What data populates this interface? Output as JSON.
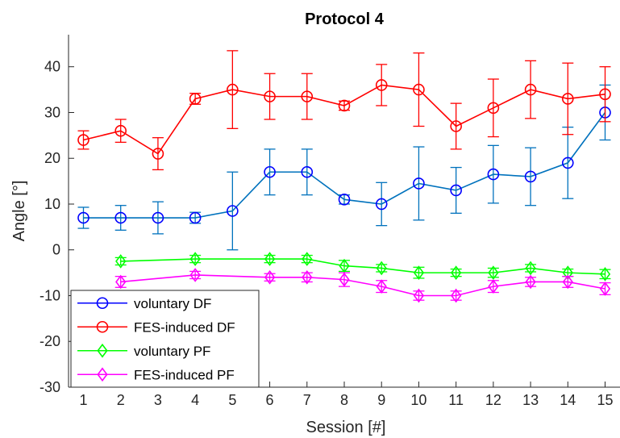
{
  "chart_data": {
    "type": "line",
    "title": "Protocol 4",
    "xlabel": "Session [#]",
    "ylabel": "Angle [°]",
    "xlim": [
      0.6,
      15.4
    ],
    "ylim": [
      -30,
      47
    ],
    "xticks": [
      1,
      2,
      3,
      4,
      5,
      6,
      7,
      8,
      9,
      10,
      11,
      12,
      13,
      14,
      15
    ],
    "yticks": [
      -30,
      -20,
      -10,
      0,
      10,
      20,
      30,
      40
    ],
    "grid": false,
    "legend_position": "bottom-left",
    "series": [
      {
        "name": "voluntary DF",
        "legend_color": "#0000ff",
        "line_color": "#0072bd",
        "marker": "circle",
        "x": [
          1,
          2,
          3,
          4,
          5,
          6,
          7,
          8,
          9,
          10,
          11,
          12,
          13,
          14,
          15
        ],
        "y": [
          7,
          7,
          7,
          7,
          8.5,
          17,
          17,
          11,
          10,
          14.5,
          13,
          16.5,
          16,
          19,
          30
        ],
        "err": [
          2.3,
          2.7,
          3.5,
          1.2,
          8.5,
          5,
          5,
          1,
          4.7,
          8,
          5,
          6.3,
          6.3,
          7.8,
          6
        ]
      },
      {
        "name": "FES-induced DF",
        "legend_color": "#ff0000",
        "line_color": "#ff0000",
        "marker": "circle",
        "x": [
          1,
          2,
          3,
          4,
          5,
          6,
          7,
          8,
          9,
          10,
          11,
          12,
          13,
          14,
          15
        ],
        "y": [
          24,
          26,
          21,
          33,
          35,
          33.5,
          33.5,
          31.5,
          36,
          35,
          27,
          31,
          35,
          33,
          34
        ],
        "err": [
          2,
          2.5,
          3.5,
          1.2,
          8.5,
          5,
          5,
          1,
          4.5,
          8,
          5,
          6.3,
          6.3,
          7.8,
          6
        ]
      },
      {
        "name": "voluntary PF",
        "legend_color": "#00ff00",
        "line_color": "#00ff00",
        "marker": "diamond",
        "x": [
          2,
          4,
          6,
          7,
          8,
          9,
          10,
          11,
          12,
          13,
          14,
          15
        ],
        "y": [
          -2.5,
          -2,
          -2,
          -2,
          -3.5,
          -4,
          -5,
          -5,
          -5,
          -4,
          -5,
          -5.3
        ],
        "err": [
          0.8,
          0.8,
          0.8,
          0.8,
          1.2,
          0.8,
          1.2,
          0.8,
          1,
          0.8,
          0.8,
          1
        ]
      },
      {
        "name": "FES-induced PF",
        "legend_color": "#ff00ff",
        "line_color": "#ff00ff",
        "marker": "diamond",
        "x": [
          2,
          4,
          6,
          7,
          8,
          9,
          10,
          11,
          12,
          13,
          14,
          15
        ],
        "y": [
          -7,
          -5.5,
          -6,
          -6,
          -6.5,
          -8,
          -10,
          -10,
          -8,
          -7,
          -7,
          -8.5
        ],
        "err": [
          1.2,
          0.8,
          0.8,
          1,
          1.5,
          1.3,
          1,
          1,
          1.3,
          1,
          1.2,
          1.3
        ]
      }
    ]
  }
}
